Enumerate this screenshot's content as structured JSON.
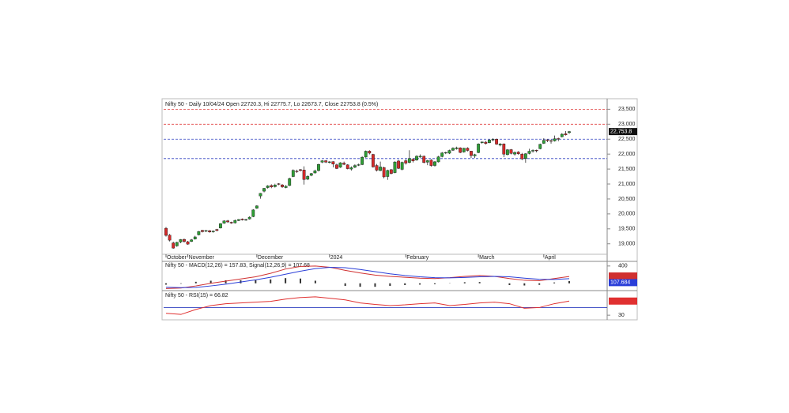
{
  "chart_data": [
    {
      "type": "candlestick",
      "title": "Nifty 50 - Daily 10/04/24 Open 22720.3, Hi 22775.7, Lo 22673.7, Close 22753.8 (0.5%)",
      "categories": [
        "October",
        null,
        null,
        null,
        null,
        null,
        "November",
        null,
        null,
        null,
        null,
        null,
        null,
        null,
        null,
        null,
        null,
        null,
        null,
        null,
        null,
        null,
        null,
        null,
        null,
        "December",
        null,
        null,
        null,
        null,
        null,
        null,
        null,
        null,
        null,
        null,
        null,
        null,
        null,
        null,
        null,
        null,
        null,
        null,
        null,
        "2024",
        null,
        null,
        null,
        null,
        null,
        null,
        null,
        null,
        null,
        null,
        null,
        null,
        null,
        null,
        null,
        null,
        null,
        null,
        null,
        null,
        "February",
        null,
        null,
        null,
        null,
        null,
        null,
        null,
        null,
        null,
        null,
        null,
        null,
        null,
        null,
        null,
        null,
        null,
        null,
        null,
        "March",
        null,
        null,
        null,
        null,
        null,
        null,
        null,
        null,
        null,
        null,
        null,
        null,
        null,
        null,
        null,
        null,
        null,
        "April",
        null,
        null,
        null,
        null,
        null,
        null,
        null
      ],
      "open": [
        19520,
        19290,
        19030,
        18930,
        19060,
        19150,
        19070,
        19080,
        19160,
        19300,
        19450,
        19420,
        19440,
        19400,
        19480,
        19530,
        19690,
        19770,
        19720,
        19700,
        19780,
        19830,
        19800,
        19830,
        19910,
        20190,
        20600,
        20760,
        20880,
        20950,
        20910,
        21010,
        20970,
        20880,
        20950,
        21250,
        21430,
        21480,
        21470,
        21160,
        21290,
        21370,
        21450,
        21730,
        21780,
        21730,
        21750,
        21640,
        21560,
        21700,
        21640,
        21500,
        21560,
        21640,
        21650,
        21900,
        22100,
        21990,
        21620,
        21450,
        21550,
        21250,
        21480,
        21380,
        21770,
        21490,
        21780,
        21720,
        21830,
        21800,
        21900,
        21930,
        21730,
        21800,
        21620,
        21740,
        21920,
        22050,
        22030,
        22130,
        22180,
        22210,
        22070,
        22200,
        22100,
        21940,
        22050,
        22380,
        22400,
        22380,
        22480,
        22500,
        22300,
        22340,
        21980,
        22150,
        22000,
        22070,
        22000,
        21850,
        22020,
        22100,
        22130,
        22180,
        22360,
        22480,
        22450,
        22440,
        22520,
        22580,
        22680,
        22720.3
      ],
      "high": [
        19560,
        19330,
        19070,
        19070,
        19160,
        19170,
        19100,
        19160,
        19270,
        19430,
        19470,
        19460,
        19460,
        19450,
        19500,
        19690,
        19790,
        19800,
        19740,
        19810,
        19830,
        19850,
        19840,
        19920,
        20160,
        20290,
        20700,
        20870,
        20960,
        20990,
        21010,
        21030,
        21000,
        20960,
        21210,
        21490,
        21480,
        21500,
        21590,
        21290,
        21370,
        21480,
        21680,
        21800,
        21800,
        21760,
        21760,
        21680,
        21730,
        21750,
        21660,
        21590,
        21660,
        21680,
        21930,
        22120,
        22130,
        22010,
        21670,
        21750,
        21580,
        21480,
        21500,
        21760,
        21810,
        21750,
        21830,
        22130,
        21860,
        21960,
        21990,
        21950,
        21810,
        21830,
        21770,
        21940,
        22070,
        22080,
        22150,
        22230,
        22250,
        22230,
        22210,
        22230,
        22110,
        22010,
        22360,
        22420,
        22440,
        22500,
        22530,
        22520,
        22370,
        22360,
        22170,
        22170,
        22090,
        22100,
        22040,
        22030,
        22180,
        22160,
        22150,
        22350,
        22530,
        22490,
        22490,
        22620,
        22550,
        22700,
        22770,
        22775.7
      ],
      "low": [
        19240,
        19080,
        18837,
        18900,
        19020,
        19040,
        18970,
        19060,
        19140,
        19280,
        19380,
        19390,
        19370,
        19370,
        19420,
        19510,
        19670,
        19700,
        19670,
        19680,
        19760,
        19780,
        19770,
        19810,
        19890,
        20170,
        20510,
        20720,
        20850,
        20860,
        20880,
        20960,
        20870,
        20860,
        20930,
        21230,
        21370,
        21420,
        20980,
        21130,
        21260,
        21350,
        21420,
        21700,
        21700,
        21690,
        21560,
        21500,
        21540,
        21630,
        21490,
        21450,
        21530,
        21600,
        21630,
        21880,
        21990,
        21550,
        21420,
        21430,
        21190,
        21140,
        21320,
        21360,
        21500,
        21460,
        21650,
        21690,
        21720,
        21780,
        21880,
        21690,
        21630,
        21580,
        21580,
        21720,
        21890,
        22000,
        22000,
        22110,
        22150,
        22030,
        22050,
        22090,
        21870,
        21870,
        22030,
        22350,
        22320,
        22360,
        22430,
        22310,
        22260,
        21900,
        21960,
        21990,
        21950,
        21980,
        21800,
        21710,
        21990,
        22050,
        22060,
        22160,
        22340,
        22400,
        22350,
        22420,
        22430,
        22560,
        22620,
        22673.7
      ],
      "close": [
        19282,
        19122,
        18857,
        19047,
        19141,
        19080,
        18989,
        19133,
        19231,
        19412,
        19406,
        19444,
        19395,
        19425,
        19443,
        19675,
        19765,
        19732,
        19694,
        19784,
        19812,
        19802,
        19811,
        19890,
        20133,
        20268,
        20687,
        20855,
        20937,
        20901,
        20969,
        20997,
        20906,
        20926,
        21183,
        21456,
        21418,
        21453,
        21150,
        21255,
        21349,
        21441,
        21654,
        21778,
        21731,
        21742,
        21665,
        21518,
        21711,
        21658,
        21513,
        21545,
        21618,
        21647,
        21894,
        22097,
        22032,
        21572,
        21462,
        21571,
        21239,
        21454,
        21353,
        21737,
        21522,
        21725,
        21697,
        21854,
        21771,
        21929,
        21930,
        21718,
        21782,
        21617,
        21743,
        21910,
        22040,
        22055,
        22122,
        22197,
        22212,
        22055,
        22198,
        22122,
        21951,
        21982,
        22338,
        22405,
        22356,
        22474,
        22493,
        22333,
        22335,
        21998,
        22146,
        22023,
        22056,
        22012,
        21839,
        22011,
        22096,
        22124,
        22123,
        22327,
        22462,
        22453,
        22434,
        22514,
        22513,
        22666,
        22642,
        22753.8
      ],
      "last_value_label": "22,753.8",
      "up_color": "#2f9e36",
      "down_color": "#d42a2a",
      "levels": [
        {
          "value": 23500,
          "color": "#e04040"
        },
        {
          "value": 23000,
          "color": "#e04040"
        },
        {
          "value": 22500,
          "color": "#3040c0"
        },
        {
          "value": 21850,
          "color": "#3040c0"
        }
      ],
      "ylim": [
        18650,
        23800
      ],
      "yticks": [
        {
          "value": 19000,
          "label": "19,000"
        },
        {
          "value": 19500,
          "label": "19,500"
        },
        {
          "value": 20000,
          "label": "20,000"
        },
        {
          "value": 20500,
          "label": "20,500"
        },
        {
          "value": 21000,
          "label": "21,000"
        },
        {
          "value": 21500,
          "label": "21,500"
        },
        {
          "value": 22000,
          "label": "22,000"
        },
        {
          "value": 22500,
          "label": "22,500"
        },
        {
          "value": 23000,
          "label": "23,000"
        },
        {
          "value": 23500,
          "label": "23,500"
        }
      ]
    },
    {
      "type": "macd",
      "title": "Nifty 50 - MACD(12,26) = 157.83, Signal(12,26,9) = 107.68",
      "series": [
        {
          "color": "#d03030",
          "values": [
            -120,
            -110,
            -60,
            0,
            50,
            100,
            150,
            230,
            330,
            390,
            400,
            370,
            300,
            240,
            190,
            160,
            140,
            120,
            110,
            130,
            160,
            180,
            160,
            110,
            70,
            60,
            110,
            157.83
          ]
        },
        {
          "color": "#2a3ed8",
          "values": [
            -90,
            -100,
            -95,
            -60,
            -20,
            30,
            80,
            140,
            210,
            280,
            340,
            370,
            360,
            320,
            270,
            220,
            180,
            150,
            130,
            125,
            135,
            150,
            160,
            150,
            120,
            95,
            90,
            107.68
          ],
          "last_label": "107.684"
        }
      ],
      "histogram": {
        "color": "#333333",
        "values": [
          -30,
          -10,
          35,
          60,
          70,
          70,
          70,
          90,
          120,
          110,
          60,
          0,
          -60,
          -80,
          -80,
          -60,
          -40,
          -30,
          -20,
          5,
          25,
          30,
          0,
          -40,
          -50,
          -35,
          20,
          50
        ]
      },
      "ylim": [
        -150,
        470
      ],
      "yticks": [
        400
      ]
    },
    {
      "type": "line",
      "title": "Nifty 50 - RSI(15) = 66.82",
      "series": [
        {
          "color": "#e03030",
          "values": [
            35,
            32,
            45,
            55,
            60,
            62,
            64,
            66,
            72,
            76,
            78,
            74,
            70,
            62,
            58,
            55,
            57,
            60,
            62,
            55,
            58,
            62,
            64,
            60,
            48,
            50,
            60,
            66.82
          ]
        }
      ],
      "levels": [
        {
          "value": 50,
          "color": "#3040c0"
        }
      ],
      "ylim": [
        20,
        90
      ],
      "yticks": [
        30
      ]
    }
  ]
}
